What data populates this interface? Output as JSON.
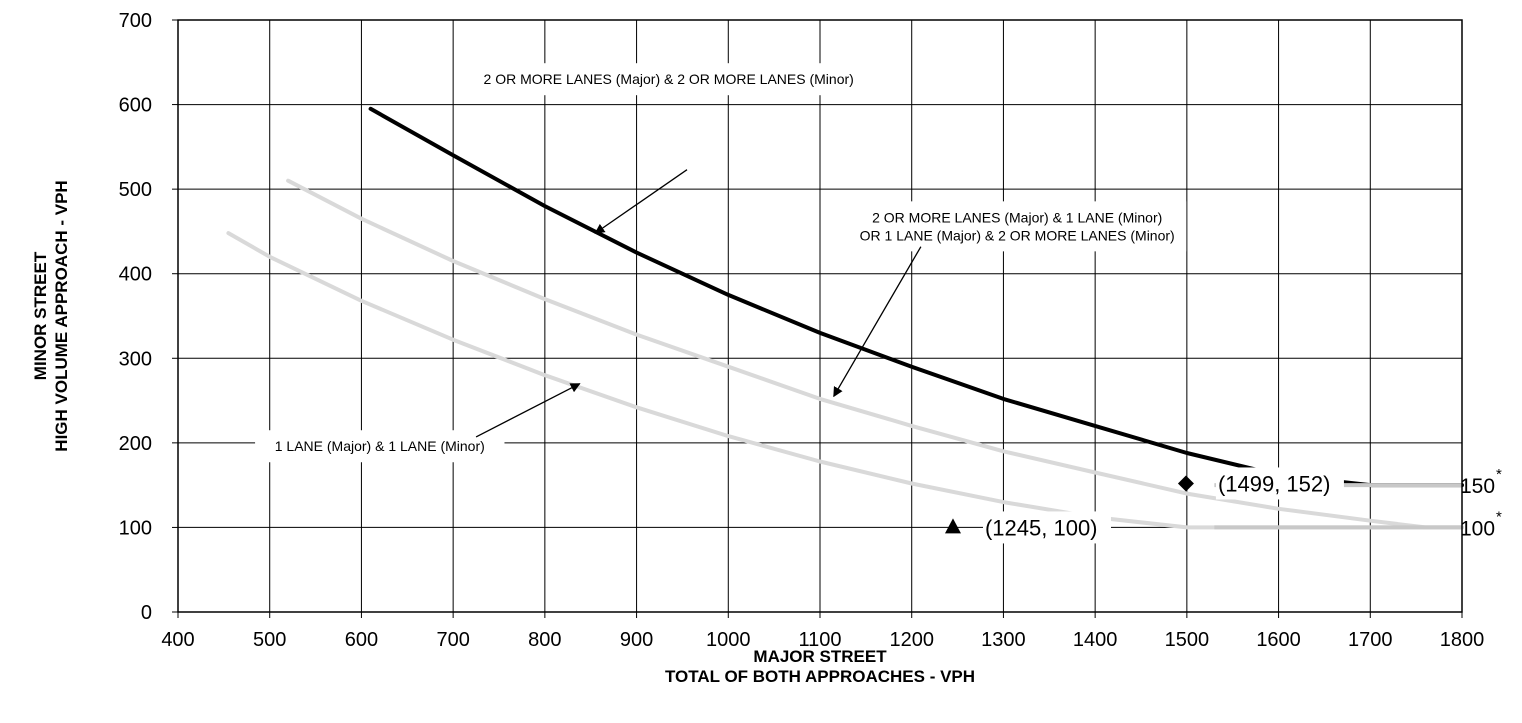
{
  "chart_data": {
    "type": "line",
    "xlabel": [
      "MAJOR STREET",
      "TOTAL OF BOTH APPROACHES - VPH"
    ],
    "ylabel": [
      "MINOR STREET",
      "HIGH VOLUME APPROACH - VPH"
    ],
    "xlim": [
      400,
      1800
    ],
    "ylim": [
      0,
      700
    ],
    "xticks": [
      400,
      500,
      600,
      700,
      800,
      900,
      1000,
      1100,
      1200,
      1300,
      1400,
      1500,
      1600,
      1700,
      1800
    ],
    "yticks": [
      0,
      100,
      200,
      300,
      400,
      500,
      600,
      700
    ],
    "grid": true,
    "series": [
      {
        "color": "#000000",
        "points": [
          [
            610,
            595
          ],
          [
            700,
            540
          ],
          [
            800,
            480
          ],
          [
            900,
            425
          ],
          [
            1000,
            375
          ],
          [
            1100,
            330
          ],
          [
            1200,
            290
          ],
          [
            1300,
            252
          ],
          [
            1400,
            220
          ],
          [
            1500,
            188
          ],
          [
            1600,
            162
          ],
          [
            1700,
            150
          ],
          [
            1800,
            150
          ]
        ]
      },
      {
        "color": "#d9d9d9",
        "points": [
          [
            520,
            510
          ],
          [
            600,
            465
          ],
          [
            700,
            415
          ],
          [
            800,
            370
          ],
          [
            900,
            328
          ],
          [
            1000,
            290
          ],
          [
            1100,
            252
          ],
          [
            1200,
            220
          ],
          [
            1300,
            190
          ],
          [
            1400,
            165
          ],
          [
            1500,
            140
          ],
          [
            1600,
            122
          ],
          [
            1700,
            108
          ],
          [
            1760,
            100
          ],
          [
            1800,
            100
          ]
        ]
      },
      {
        "color": "#d9d9d9",
        "points": [
          [
            455,
            448
          ],
          [
            500,
            420
          ],
          [
            600,
            368
          ],
          [
            700,
            322
          ],
          [
            800,
            280
          ],
          [
            900,
            242
          ],
          [
            1000,
            208
          ],
          [
            1100,
            178
          ],
          [
            1200,
            152
          ],
          [
            1300,
            130
          ],
          [
            1400,
            112
          ],
          [
            1500,
            100
          ],
          [
            1800,
            100
          ]
        ]
      }
    ],
    "thresholds": [
      {
        "y": 150,
        "x_from": 1530,
        "x_to": 1800,
        "label": "150",
        "marker": "*",
        "color": "#c8c8c8"
      },
      {
        "y": 100,
        "x_from": 1530,
        "x_to": 1800,
        "label": "100",
        "marker": "*",
        "color": "#c8c8c8"
      }
    ],
    "points": [
      {
        "x": 1499,
        "y": 152,
        "label": "(1499, 152)",
        "marker": "diamond"
      },
      {
        "x": 1245,
        "y": 100,
        "label": "(1245, 100)",
        "marker": "triangle"
      }
    ],
    "annotations": [
      {
        "lines": [
          "2 OR MORE LANES (Major) & 2 OR MORE LANES (Minor)"
        ],
        "text_at": [
          935,
          630
        ],
        "from": [
          955,
          523
        ],
        "to": [
          855,
          448
        ]
      },
      {
        "lines": [
          "2 OR MORE LANES (Major) & 1 LANE (Minor)",
          "OR 1 LANE (Major) & 2 OR MORE LANES (Minor)"
        ],
        "text_at": [
          1315,
          456
        ],
        "from": [
          1210,
          432
        ],
        "to": [
          1115,
          255
        ]
      },
      {
        "lines": [
          "1 LANE (Major) & 1 LANE (Minor)"
        ],
        "text_at": [
          620,
          196
        ],
        "from": [
          725,
          207
        ],
        "to": [
          838,
          270
        ]
      }
    ]
  }
}
